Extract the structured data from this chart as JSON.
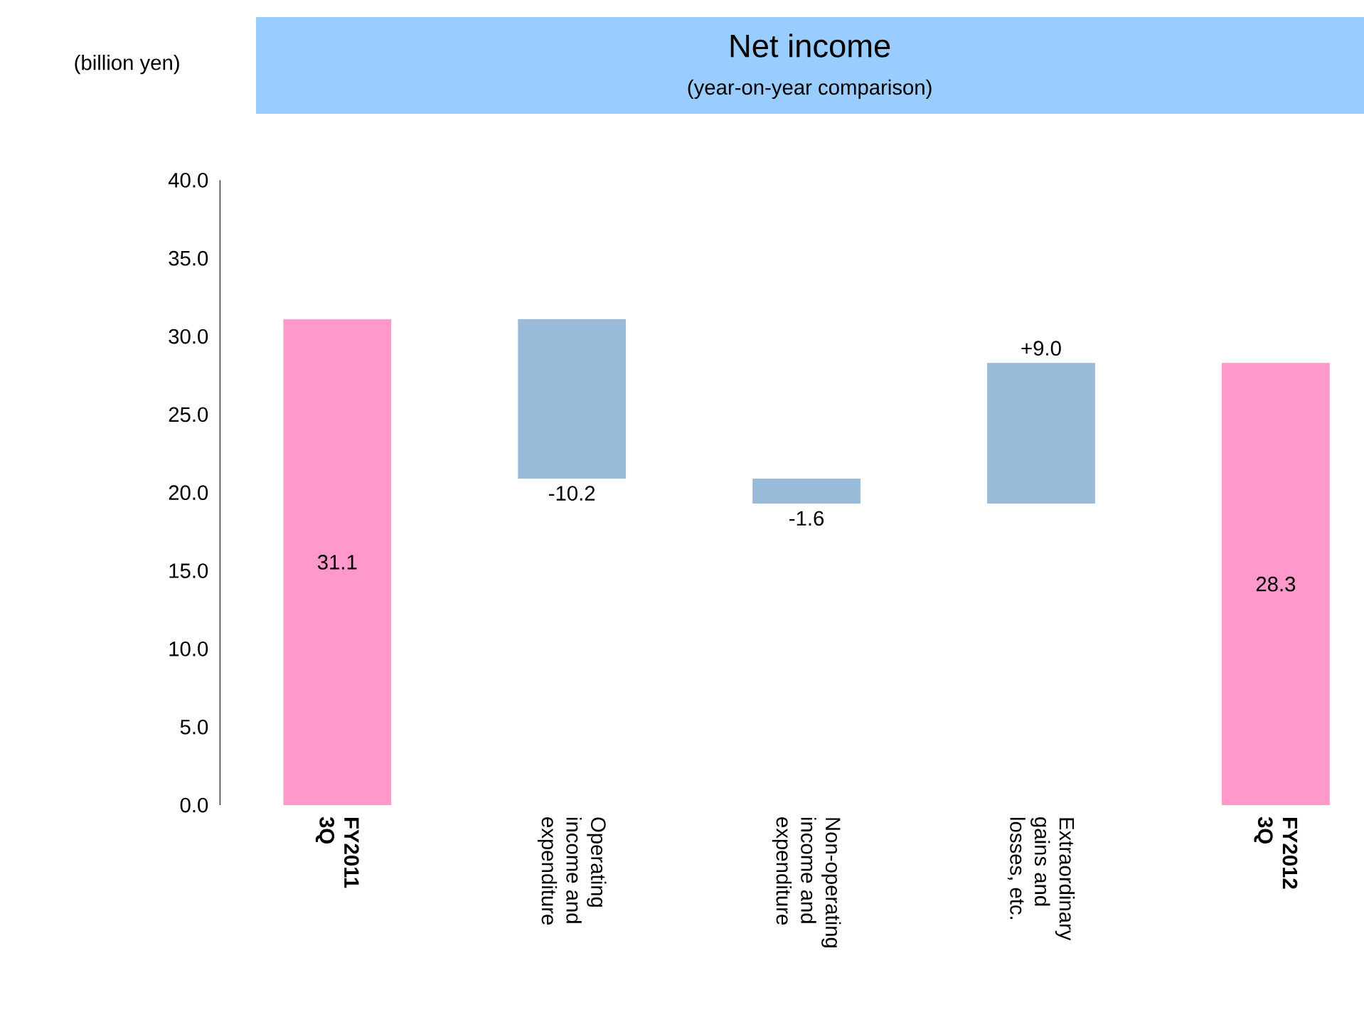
{
  "chart_data": {
    "type": "bar",
    "title": "Net income",
    "subtitle": "(year-on-year comparison)",
    "ylabel": "(billion yen)",
    "categories": [
      "FY2011 3Q",
      "Operating income and expenditure",
      "Non-operating income and expenditure",
      "Extraordinary gains and losses, etc.",
      "FY2012 3Q"
    ],
    "values": [
      31.1,
      -10.2,
      -1.6,
      9.0,
      28.3
    ],
    "base": [
      0,
      31.1,
      20.9,
      19.3,
      0
    ],
    "colors": [
      "#ff99cc",
      "#99bbd9",
      "#99bbd9",
      "#99bbd9",
      "#ff99cc"
    ],
    "value_labels": [
      "31.1",
      "-10.2",
      "-1.6",
      "+9.0",
      "28.3"
    ],
    "ylim": [
      0,
      40
    ],
    "yticks": [
      {
        "value": 0,
        "label": "0.0"
      },
      {
        "value": 5,
        "label": "5.0"
      },
      {
        "value": 10,
        "label": "10.0"
      },
      {
        "value": 15,
        "label": "15.0"
      },
      {
        "value": 20,
        "label": "20.0"
      },
      {
        "value": 25,
        "label": "25.0"
      },
      {
        "value": 30,
        "label": "30.0"
      },
      {
        "value": 35,
        "label": "35.0"
      },
      {
        "value": 40,
        "label": "40.0"
      }
    ]
  }
}
